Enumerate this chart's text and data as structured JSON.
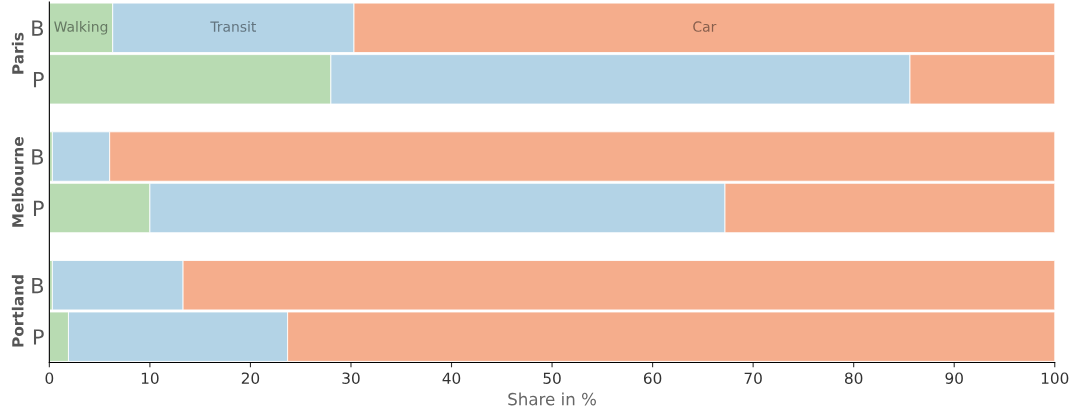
{
  "chart_data": {
    "type": "bar",
    "orientation": "horizontal",
    "stacked": true,
    "categories": [
      "B",
      "P",
      "B",
      "P",
      "B",
      "P"
    ],
    "series": [
      {
        "name": "Walking",
        "color": "#b8dbb2",
        "values": [
          6.3,
          28.0,
          0.3,
          10.0,
          0.3,
          1.9
        ]
      },
      {
        "name": "Transit",
        "color": "#b3d3e6",
        "values": [
          24.0,
          57.6,
          5.7,
          57.2,
          13.0,
          21.8
        ]
      },
      {
        "name": "Car",
        "color": "#f5ad8c",
        "values": [
          69.7,
          14.4,
          94.0,
          32.8,
          86.7,
          76.3
        ]
      }
    ],
    "xlabel": "Share in %",
    "xlim": [
      0,
      100
    ],
    "xticks": [
      0,
      10,
      20,
      30,
      40,
      50,
      60,
      70,
      80,
      90,
      100
    ],
    "annotations": [
      "Paris",
      "Melbourne",
      "Portland"
    ],
    "grid": false
  }
}
